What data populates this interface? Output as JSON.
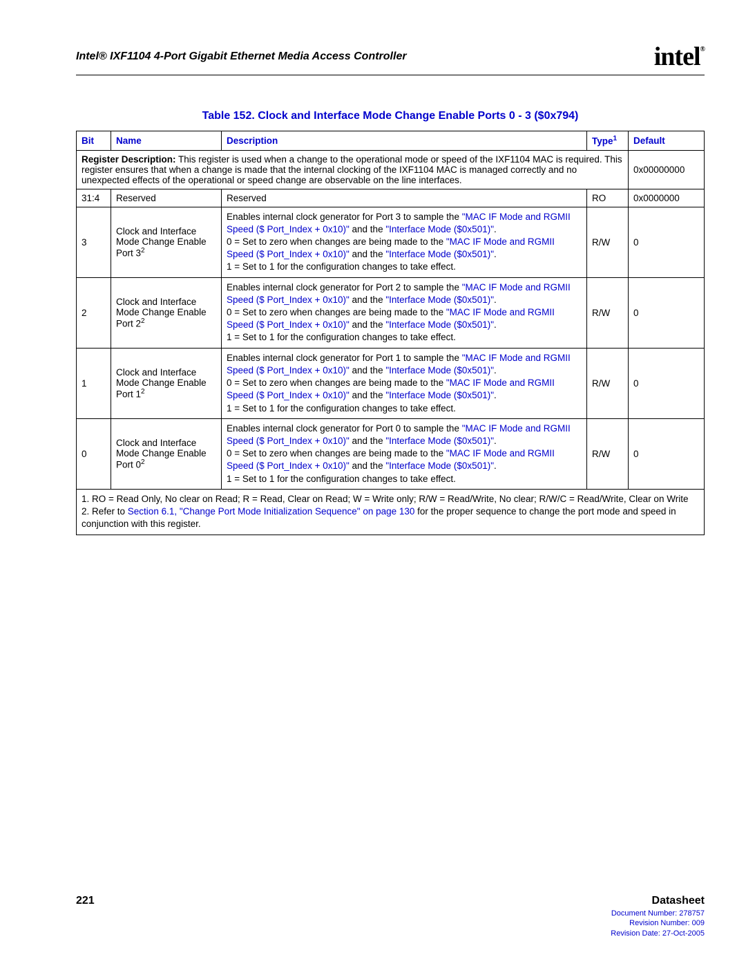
{
  "header": {
    "doc_title": "Intel® IXF1104 4-Port Gigabit Ethernet Media Access Controller",
    "logo_text": "intel",
    "logo_reg": "®"
  },
  "caption": "Table 152. Clock and Interface Mode Change Enable Ports 0 - 3 ($0x794)",
  "columns": {
    "bit": "Bit",
    "name": "Name",
    "description": "Description",
    "type": "Type",
    "type_sup": "1",
    "default": "Default"
  },
  "register_desc": {
    "label": "Register Description:",
    "text": " This register is used when a change to the operational mode or speed of the IXF1104 MAC is required. This register ensures that when a change is made that the internal clocking of the IXF1104 MAC is managed correctly and no unexpected effects of the operational or speed change are observable on the line interfaces.",
    "default": "0x00000000"
  },
  "rows": [
    {
      "bit": "31:4",
      "name": "Reserved",
      "desc": "Reserved",
      "type": "RO",
      "default": "0x0000000"
    },
    {
      "bit": "3",
      "name_line1": "Clock and Interface Mode Change Enable Port 3",
      "name_sup": "2",
      "port": "3",
      "type": "R/W",
      "default": "0"
    },
    {
      "bit": "2",
      "name_line1": "Clock and Interface Mode Change Enable Port 2",
      "name_sup": "2",
      "port": "2",
      "type": "R/W",
      "default": "0"
    },
    {
      "bit": "1",
      "name_line1": "Clock and Interface Mode Change Enable Port 1",
      "name_sup": "2",
      "port": "1",
      "type": "R/W",
      "default": "0"
    },
    {
      "bit": "0",
      "name_line1": "Clock and Interface Mode Change Enable Port 0",
      "name_sup": "2",
      "port": "0",
      "type": "R/W",
      "default": "0"
    }
  ],
  "desc_template": {
    "intro_prefix": "Enables internal clock generator for Port ",
    "intro_suffix": " to sample the ",
    "link1": "\"MAC IF Mode and RGMII Speed ($ Port_Index + 0x10)\"",
    "and_the": " and the ",
    "link2": "\"Interface Mode ($0x501)\"",
    "period": ".",
    "zero_prefix": "0 =  Set to zero when changes are being made to the ",
    "one_text": "1 =  Set to 1 for the configuration changes to take effect."
  },
  "footnotes": {
    "n1": "1. RO = Read Only, No clear on Read; R = Read, Clear on Read; W = Write only; R/W = Read/Write, No clear; R/W/C = Read/Write, Clear on Write",
    "n2_prefix": "2. Refer to ",
    "n2_link": "Section 6.1, \"Change Port Mode Initialization Sequence\" on page 130",
    "n2_suffix": " for the proper sequence to change the port mode and speed in conjunction with this register."
  },
  "footer": {
    "page": "221",
    "label": "Datasheet",
    "doc_number": "Document Number: 278757",
    "rev_number": "Revision Number: 009",
    "rev_date": "Revision Date: 27-Oct-2005"
  },
  "colors": {
    "link": "#0000cc",
    "text": "#000000",
    "border": "#000000"
  }
}
